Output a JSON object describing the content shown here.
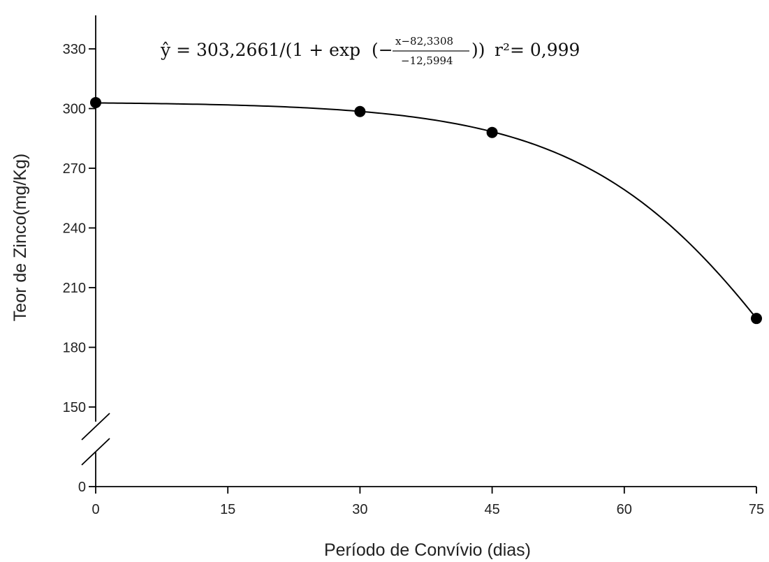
{
  "chart_data": {
    "type": "scatter",
    "title": "",
    "xlabel": "Período de Convívio (dias)",
    "ylabel": "Teor de Zinco(mg/Kg)",
    "xlim": [
      0,
      75
    ],
    "ylim": [
      0,
      350
    ],
    "y_axis_break": [
      150,
      0
    ],
    "x_ticks": [
      0,
      15,
      30,
      45,
      60,
      75
    ],
    "y_ticks": [
      0,
      150,
      180,
      210,
      240,
      270,
      300,
      330
    ],
    "grid": false,
    "series": [
      {
        "x": [
          0,
          30,
          45,
          75
        ],
        "y": [
          303,
          298.5,
          288,
          194.5
        ]
      }
    ],
    "fit": {
      "a": 303.2661,
      "x0": 82.3308,
      "b": -12.5994
    },
    "equation": {
      "lhs": "ŷ = 303,2661/(1 + exp",
      "numerator": "x−82,3308",
      "denominator": "−12,5994",
      "r2": "r²= 0,999"
    }
  }
}
